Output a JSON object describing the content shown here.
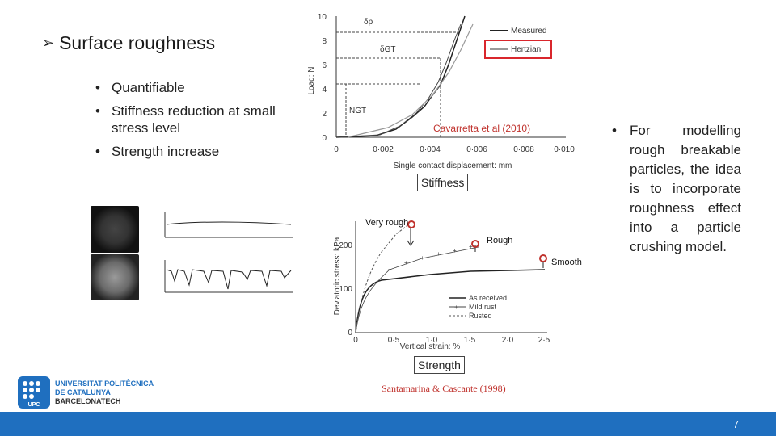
{
  "title": "Surface roughness",
  "bullets": [
    "Quantifiable",
    "Stiffness reduction at small stress level",
    "Strength increase"
  ],
  "right_text": "For modelling rough breakable particles, the idea is to incorporate roughness effect into a particle crushing model.",
  "top_chart": {
    "ylabel": "Load: N",
    "xlabel": "Single contact displacement: mm",
    "yticks": [
      "0",
      "2",
      "4",
      "6",
      "8",
      "10"
    ],
    "xticks": [
      "0",
      "0·002",
      "0·004",
      "0·006",
      "0·008",
      "0·010"
    ],
    "legend": [
      "Measured",
      "Hertzian"
    ],
    "annotations": [
      "δp",
      "δGT",
      "NGT"
    ],
    "citation": "Cavarretta et al (2010)"
  },
  "bottom_chart": {
    "ylabel": "Deviatoric stress: kPa",
    "xlabel": "Vertical strain: %",
    "yticks": [
      "0",
      "100",
      "200"
    ],
    "xticks": [
      "0",
      "0·5",
      "1·0",
      "1·5",
      "2·0",
      "2·5"
    ],
    "legend": [
      "As received",
      "Mild rust",
      "Rusted"
    ],
    "labels": {
      "very_rough": "Very rough",
      "rough": "Rough",
      "smooth": "Smooth"
    },
    "citation": "Santamarina & Cascante (1998)"
  },
  "stiffness_label": "Stiffness",
  "strength_label": "Strength",
  "logo": {
    "line1": "UNIVERSITAT POLITÈCNICA",
    "line2": "DE CATALUNYA",
    "line3": "BARCELONATECH",
    "mark": "UPC"
  },
  "page_number": "7",
  "colors": {
    "footer": "#1f6fbf",
    "marker": "#c0332e",
    "highlight_box": "#d9262c"
  }
}
